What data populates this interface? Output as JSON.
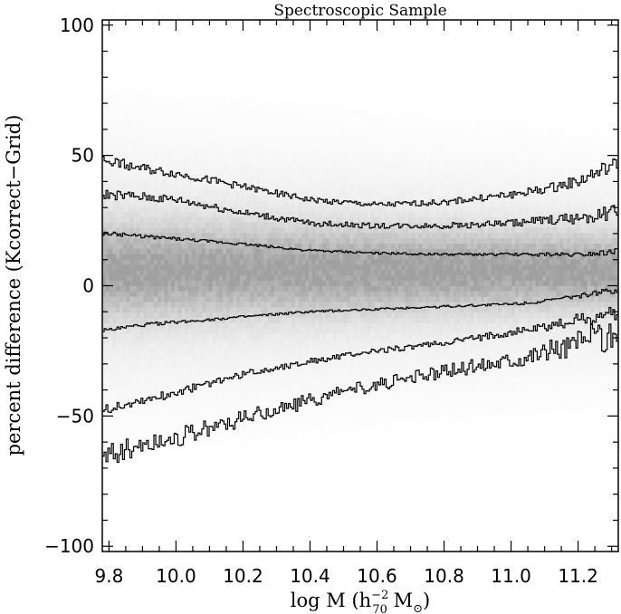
{
  "chart_data": {
    "type": "line",
    "title": "Spectroscopic Sample",
    "xlabel": {
      "prefix": "log M (h",
      "sup": "−2",
      "sub": "70",
      "suffix": " M",
      "sun": "⊙",
      "close": ")"
    },
    "ylabel": "percent difference (Kcorrect−Grid)",
    "xlim": [
      9.78,
      11.32
    ],
    "ylim": [
      -102,
      102
    ],
    "xticks": [
      9.8,
      10.0,
      10.2,
      10.4,
      10.6,
      10.8,
      11.0,
      11.2
    ],
    "xtick_labels": [
      "9.8",
      "10.0",
      "10.2",
      "10.4",
      "10.6",
      "10.8",
      "11.0",
      "11.2"
    ],
    "yticks": [
      -100,
      -50,
      0,
      50,
      100
    ],
    "ytick_labels": [
      "−100",
      "−50",
      "0",
      "50",
      "100"
    ],
    "line_color": "#000000",
    "density": {
      "description_free": true,
      "center": 6,
      "spread_start": 12,
      "spread_end": 9
    },
    "series": [
      {
        "x": [
          9.8,
          9.9,
          10.0,
          10.2,
          10.4,
          10.6,
          10.8,
          11.0,
          11.1,
          11.2,
          11.3
        ],
        "y": [
          48,
          45,
          43,
          38,
          33,
          31,
          32,
          35,
          37,
          40,
          46
        ]
      },
      {
        "x": [
          9.8,
          9.9,
          10.0,
          10.2,
          10.4,
          10.6,
          10.8,
          11.0,
          11.1,
          11.2,
          11.3
        ],
        "y": [
          35,
          34,
          33,
          28,
          24,
          23,
          23,
          24,
          25,
          26,
          28
        ]
      },
      {
        "x": [
          9.8,
          9.9,
          10.0,
          10.2,
          10.4,
          10.6,
          10.8,
          11.0,
          11.1,
          11.2,
          11.3
        ],
        "y": [
          20,
          19,
          18,
          16,
          13.5,
          12.5,
          12,
          12,
          12,
          12,
          13
        ]
      },
      {
        "x": [
          9.8,
          9.9,
          10.0,
          10.2,
          10.4,
          10.6,
          10.8,
          11.0,
          11.1,
          11.2,
          11.3
        ],
        "y": [
          -17,
          -15,
          -14,
          -12,
          -10,
          -9,
          -8,
          -7,
          -6,
          -4,
          -2
        ]
      },
      {
        "x": [
          9.8,
          9.9,
          10.0,
          10.2,
          10.4,
          10.6,
          10.8,
          11.0,
          11.1,
          11.2,
          11.3
        ],
        "y": [
          -47,
          -44,
          -41,
          -34,
          -29,
          -25,
          -22,
          -18,
          -16,
          -13,
          -11
        ]
      },
      {
        "x": [
          9.8,
          9.9,
          10.0,
          10.2,
          10.4,
          10.6,
          10.8,
          11.0,
          11.1,
          11.2,
          11.3
        ],
        "y": [
          -64,
          -61,
          -58,
          -51,
          -44,
          -38,
          -33,
          -28,
          -25,
          -22,
          -19
        ]
      }
    ]
  }
}
